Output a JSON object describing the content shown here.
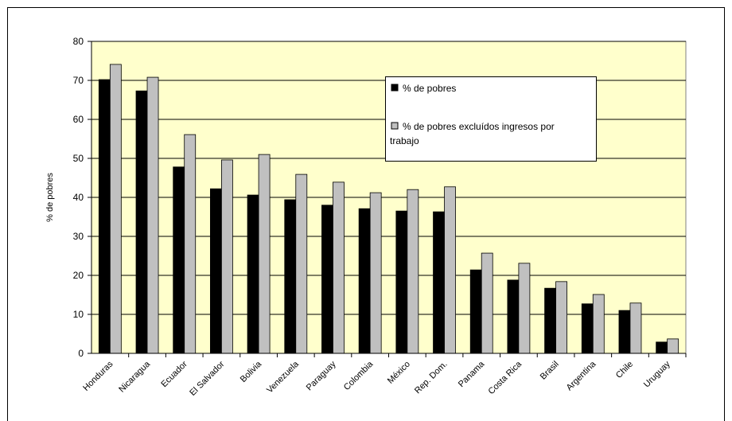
{
  "chart_data": {
    "type": "bar",
    "y_label": "% de pobres",
    "categories": [
      "Honduras",
      "Nicaragua",
      "Ecuador",
      "El Salvador",
      "Bolivia",
      "Venezuela",
      "Paraguay",
      "Colombia",
      "México",
      "Rep. Dom.",
      "Panama",
      "Costa Rica",
      "Brasil",
      "Argentina",
      "Chile",
      "Uruguay"
    ],
    "series": [
      {
        "name": "% de pobres",
        "color": "#000000",
        "values": [
          70.2,
          67.3,
          47.8,
          42.2,
          40.6,
          39.4,
          38,
          37.1,
          36.5,
          36.3,
          21.4,
          18.8,
          16.7,
          12.7,
          11,
          2.9
        ]
      },
      {
        "name": "% de pobres excluídos ingresos por trabajo",
        "color": "#c0c0c0",
        "values": [
          74.1,
          70.8,
          56.1,
          49.6,
          51,
          45.9,
          43.9,
          41.2,
          42,
          42.7,
          25.7,
          23.1,
          18.4,
          15.1,
          12.9,
          3.7
        ]
      }
    ],
    "ylim": [
      0,
      80
    ],
    "yticks": [
      0,
      10,
      20,
      30,
      40,
      50,
      60,
      70,
      80
    ],
    "grid": true,
    "background": "#ffffcc"
  }
}
